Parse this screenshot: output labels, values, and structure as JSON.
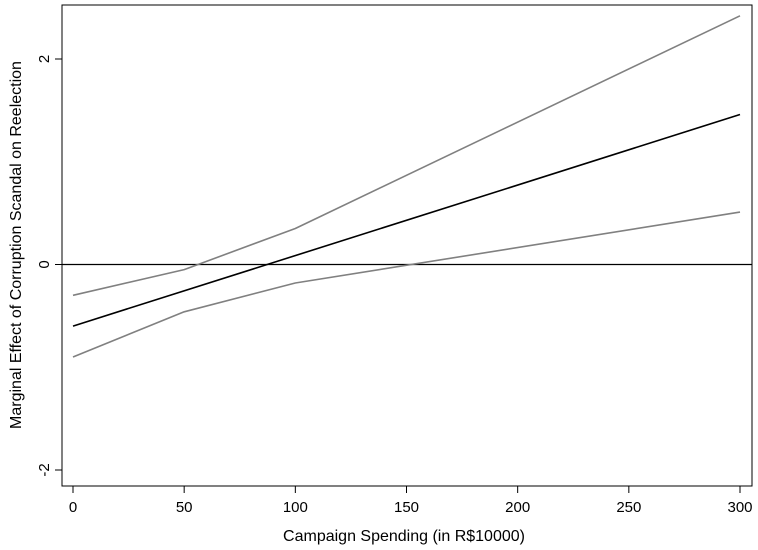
{
  "chart_data": {
    "type": "line",
    "title": "",
    "xlabel": "Campaign Spending (in R$10000)",
    "ylabel": "Marginal Effect of Corruption Scandal on Reelection",
    "xlim": [
      0,
      300
    ],
    "ylim": [
      -2,
      2.5
    ],
    "x_ticks": [
      0,
      50,
      100,
      150,
      200,
      250,
      300
    ],
    "y_ticks": [
      -2,
      0,
      2
    ],
    "reference_line_y": 0,
    "grid": false,
    "legend": "none",
    "series": [
      {
        "x": [
          0,
          300
        ],
        "y": [
          -0.6,
          1.46
        ],
        "color": "#000000"
      },
      {
        "x": [
          0,
          50,
          100,
          300
        ],
        "y": [
          -0.3,
          -0.05,
          0.35,
          2.42
        ],
        "color": "#808080"
      },
      {
        "x": [
          0,
          50,
          100,
          300
        ],
        "y": [
          -0.9,
          -0.46,
          -0.18,
          0.51
        ],
        "color": "#808080"
      }
    ],
    "colors": {
      "estimate": "#000000",
      "confidence_band": "#808080",
      "reference_line": "#000000"
    }
  }
}
